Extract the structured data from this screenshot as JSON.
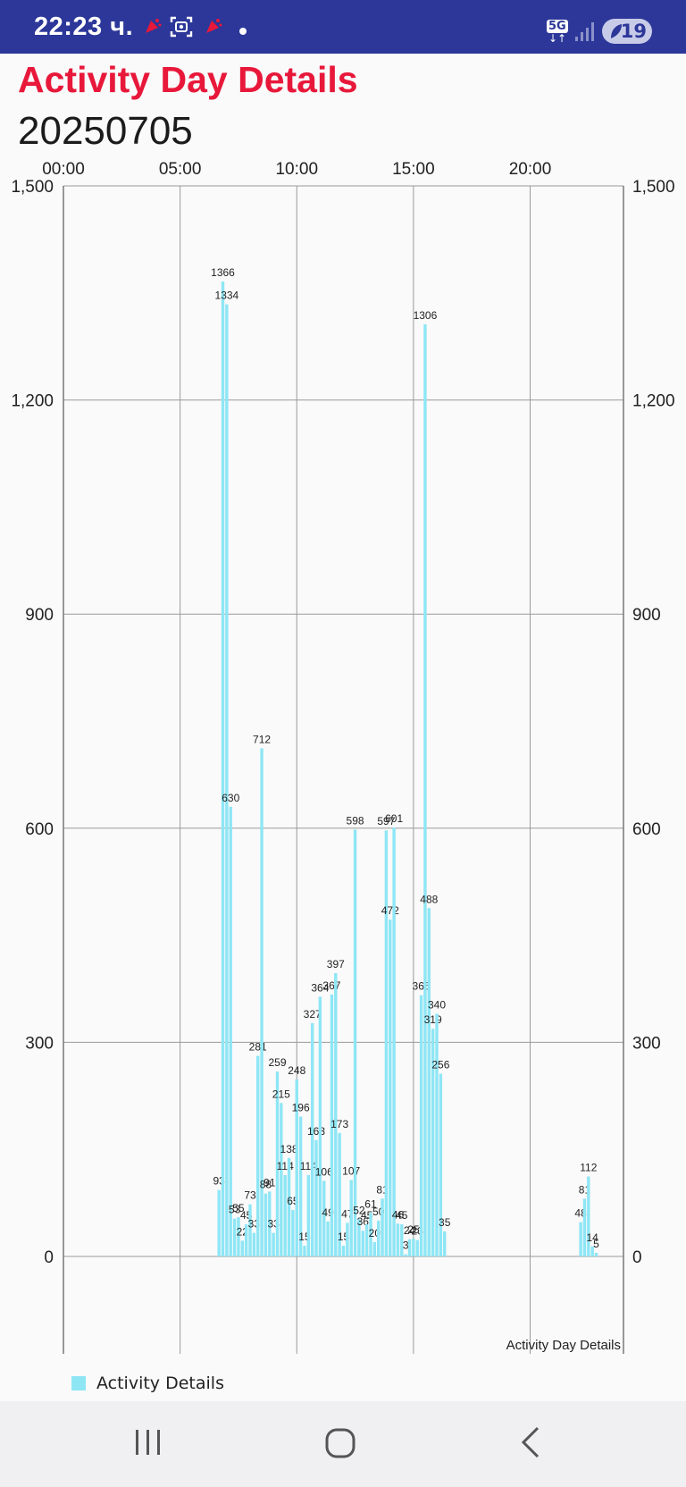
{
  "status_bar": {
    "time": "22:23 ч.",
    "network": "5G",
    "battery": "19",
    "icons": [
      "notification-icon",
      "screenshot-icon",
      "notification-icon",
      "dot-icon",
      "network-5g-icon",
      "signal-icon",
      "battery-icon"
    ]
  },
  "header": {
    "title": "Activity Day Details",
    "date": "20250705"
  },
  "legend": {
    "label": "Activity Details"
  },
  "nav_bar": {
    "icons": [
      "recent-apps-icon",
      "home-icon",
      "back-icon"
    ]
  },
  "colors": {
    "status_bar": "#2c3799",
    "title": "#e8183a",
    "bar": "#8ee6f5",
    "grid": "#9a9a9a"
  },
  "chart_data": {
    "type": "bar",
    "description": "Activity Day Details",
    "x_unit": "hour of day",
    "x_ticks": [
      "00:00",
      "05:00",
      "10:00",
      "15:00",
      "20:00"
    ],
    "x_tick_positions": [
      0,
      5,
      10,
      15,
      20
    ],
    "xlim": [
      0,
      24
    ],
    "ylim": [
      0,
      1500
    ],
    "y_ticks": [
      0,
      300,
      600,
      900,
      1200,
      1500
    ],
    "y_tick_labels": [
      "0",
      "300",
      "600",
      "900",
      "1,200",
      "1,500"
    ],
    "y_axis_both_sides": true,
    "grid": true,
    "legend_position": "bottom-left",
    "series": [
      {
        "name": "Activity Details",
        "color": "#8ee6f5",
        "x": [
          6.667,
          6.833,
          7.0,
          7.167,
          7.333,
          7.5,
          7.667,
          7.833,
          8.0,
          8.167,
          8.333,
          8.5,
          8.667,
          8.833,
          9.0,
          9.167,
          9.333,
          9.5,
          9.667,
          9.833,
          10.0,
          10.167,
          10.333,
          10.5,
          10.667,
          10.833,
          11.0,
          11.167,
          11.333,
          11.5,
          11.667,
          11.833,
          12.0,
          12.167,
          12.333,
          12.5,
          12.667,
          12.833,
          13.0,
          13.167,
          13.333,
          13.5,
          13.667,
          13.833,
          14.0,
          14.167,
          14.333,
          14.5,
          14.667,
          14.833,
          15.0,
          15.167,
          15.333,
          15.5,
          15.667,
          15.833,
          16.0,
          16.167,
          16.333,
          16.5,
          16.667,
          16.833,
          17.0,
          17.167,
          17.333,
          17.5,
          17.667,
          17.833,
          18.0,
          18.167,
          18.333,
          18.5,
          18.667,
          18.833,
          19.0,
          19.167,
          19.333,
          19.5,
          19.667,
          19.833,
          20.0,
          20.167,
          20.333,
          20.5,
          20.667,
          20.833,
          21.0,
          21.167,
          21.333,
          22.167,
          22.333,
          22.5,
          22.667,
          22.833,
          23.0
        ],
        "values": [
          93,
          1366,
          1334,
          630,
          53,
          55,
          22,
          45,
          73,
          33,
          281,
          712,
          88,
          91,
          33,
          259,
          215,
          114,
          138,
          65,
          248,
          196,
          15,
          114,
          327,
          163,
          364,
          106,
          49,
          367,
          397,
          173,
          15,
          47,
          107,
          598,
          52,
          36,
          45,
          61,
          20,
          50,
          81,
          597,
          472,
          601,
          46,
          45,
          3,
          24,
          25,
          23,
          366,
          1306,
          488,
          319,
          340,
          256,
          35,
          0,
          0,
          0,
          0,
          0,
          0,
          0,
          0,
          0,
          0,
          0,
          0,
          0,
          0,
          0,
          0,
          0,
          0,
          0,
          0,
          0,
          0,
          0,
          0,
          0,
          0,
          0,
          0,
          0,
          0,
          48,
          81,
          112,
          14,
          5,
          0
        ]
      }
    ]
  }
}
